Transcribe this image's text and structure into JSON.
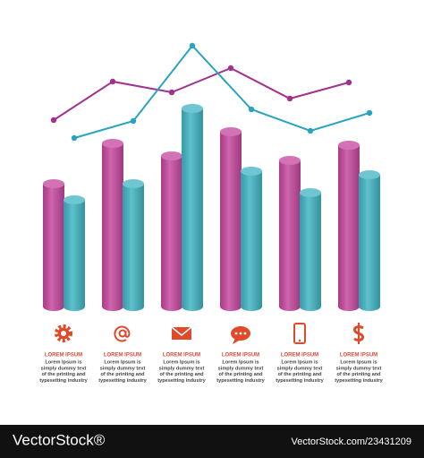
{
  "chart_data": {
    "type": "bar",
    "categories": [
      null,
      null,
      null,
      null,
      null,
      null
    ],
    "ylim": [
      0,
      300
    ],
    "series": [
      {
        "type": "bar",
        "color": "#c4459d",
        "values": [
          137,
          182,
          168,
          195,
          163,
          180
        ]
      },
      {
        "type": "bar",
        "color": "#3db3c2",
        "values": [
          119,
          137,
          221,
          151,
          127,
          147
        ]
      },
      {
        "type": "line",
        "color": "#a2308f",
        "values": [
          208,
          251,
          239,
          266,
          232,
          250
        ]
      },
      {
        "type": "line",
        "color": "#2aa3bf",
        "values": [
          188,
          207,
          291,
          220,
          196,
          216
        ]
      }
    ]
  },
  "captions": [
    {
      "title": "LOREM IPSUM",
      "lines": [
        "Lorem Ipsum is",
        "simply dummy text",
        "of the printing and",
        "typesetting industry"
      ]
    },
    {
      "title": "LOREM IPSUM",
      "lines": [
        "Lorem Ipsum is",
        "simply dummy text",
        "of the printing and",
        "typesetting industry"
      ]
    },
    {
      "title": "LOREM IPSUM",
      "lines": [
        "Lorem Ipsum is",
        "simply dummy text",
        "of the printing and",
        "typesetting industry"
      ]
    },
    {
      "title": "LOREM IPSUM",
      "lines": [
        "Lorem Ipsum is",
        "simply dummy text",
        "of the printing and",
        "typesetting industry"
      ]
    },
    {
      "title": "LOREM IPSUM",
      "lines": [
        "Lorem Ipsum is",
        "simply dummy text",
        "of the printing and",
        "typesetting industry"
      ]
    },
    {
      "title": "LOREM IPSUM",
      "lines": [
        "Lorem Ipsum is",
        "simply dummy text",
        "of the printing and",
        "typesetting industry"
      ]
    }
  ],
  "footer": {
    "brand": "VectorStock®",
    "url": "VectorStock.com/23431209"
  }
}
